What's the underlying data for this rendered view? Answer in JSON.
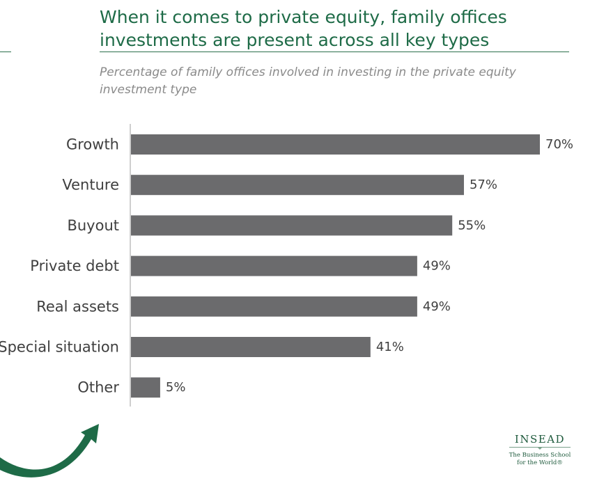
{
  "header": {
    "title": "When it comes to private equity, family offices investments are present across all key types",
    "subtitle": "Percentage of family offices involved in investing in the private equity investment type"
  },
  "colors": {
    "accent": "#1e6b47",
    "bar": "#6b6b6d",
    "text": "#3f3f3f",
    "subtitle": "#8a8a8a"
  },
  "logo": {
    "name": "INSEAD",
    "tagline": "The Business School\nfor the World®"
  },
  "decor": {
    "arrow_icon": "curved-arrow-up-icon"
  },
  "chart_data": {
    "type": "bar",
    "orientation": "horizontal",
    "categories": [
      "Growth",
      "Venture",
      "Buyout",
      "Private debt",
      "Real assets",
      "Special situation",
      "Other"
    ],
    "values": [
      70,
      57,
      55,
      49,
      49,
      41,
      5
    ],
    "value_labels": [
      "70%",
      "57%",
      "55%",
      "49%",
      "49%",
      "41%",
      "5%"
    ],
    "unit": "%",
    "xlim": [
      0,
      70
    ],
    "grid": false,
    "legend": "none"
  }
}
